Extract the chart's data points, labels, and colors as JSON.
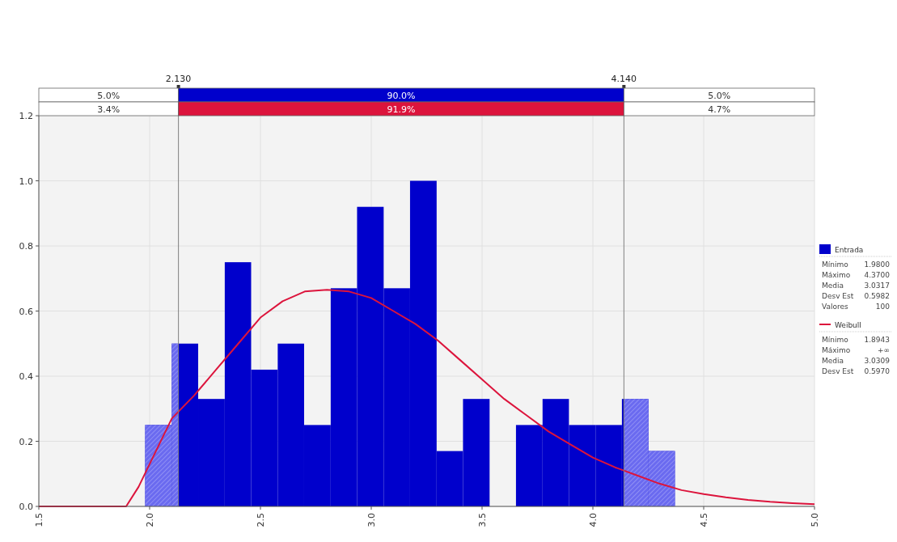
{
  "chart_data": {
    "type": "histogram",
    "bins": [
      1.98,
      2.1,
      2.219,
      2.339,
      2.458,
      2.578,
      2.697,
      2.817,
      2.936,
      3.056,
      3.175,
      3.295,
      3.414,
      3.534,
      3.653,
      3.773,
      3.892,
      4.012,
      4.131,
      4.251,
      4.37
    ],
    "series": [
      {
        "name": "Entrada",
        "color": "#0000cc",
        "values": [
          0.25,
          0.5,
          0.33,
          0.75,
          0.42,
          0.5,
          0.25,
          0.67,
          0.92,
          0.67,
          1.0,
          0.17,
          0.33,
          0,
          0.25,
          0.33,
          0.25,
          0.25,
          0.33,
          0.17
        ]
      },
      {
        "name": "Weibull",
        "type": "line",
        "color": "#dc143c",
        "x": [
          1.5,
          1.894,
          1.95,
          2.0,
          2.1,
          2.2,
          2.3,
          2.4,
          2.5,
          2.6,
          2.7,
          2.8,
          2.9,
          3.0,
          3.1,
          3.2,
          3.3,
          3.4,
          3.5,
          3.6,
          3.7,
          3.8,
          3.9,
          4.0,
          4.1,
          4.2,
          4.3,
          4.4,
          4.5,
          4.6,
          4.7,
          4.8,
          4.9,
          5.0
        ],
        "values": [
          0,
          0,
          0.06,
          0.13,
          0.27,
          0.34,
          0.42,
          0.5,
          0.58,
          0.63,
          0.66,
          0.665,
          0.66,
          0.64,
          0.6,
          0.56,
          0.51,
          0.45,
          0.39,
          0.33,
          0.28,
          0.23,
          0.19,
          0.15,
          0.12,
          0.095,
          0.07,
          0.05,
          0.038,
          0.028,
          0.02,
          0.014,
          0.01,
          0.007
        ]
      }
    ],
    "xlim": [
      1.5,
      5.0
    ],
    "xticks": [
      1.5,
      {
        "value": 2,
        "label": "2.0"
      },
      2.5,
      {
        "value": 3,
        "label": "3.0"
      },
      3.5,
      {
        "value": 4,
        "label": "4.0"
      },
      4.5,
      {
        "value": 5,
        "label": "5.0"
      }
    ],
    "ylim": [
      0,
      1.2
    ],
    "yticks": [
      {
        "value": 0,
        "label": "0.0"
      },
      0.2,
      0.4,
      0.6,
      0.8,
      {
        "value": 1,
        "label": "1.0"
      },
      1.2
    ],
    "grid": true,
    "legend": "right",
    "ref_lines": [
      {
        "axis": "x",
        "value": 2.13,
        "label": "2.130",
        "color": "#808080"
      },
      {
        "axis": "x",
        "value": 4.14,
        "label": "4.140",
        "color": "#808080"
      }
    ],
    "annotations": [
      "5.0%",
      "90.0%",
      "5.0%",
      "3.4%",
      "91.9%",
      "4.7%",
      "Mínimo 1.9800",
      "Máximo 4.3700",
      "Media 3.0317",
      "Desv Est 0.5982",
      "Valores 100",
      "Mínimo 1.8943",
      "Máximo +∞",
      "Media 3.0309",
      "Desv Est 0.5970"
    ]
  }
}
